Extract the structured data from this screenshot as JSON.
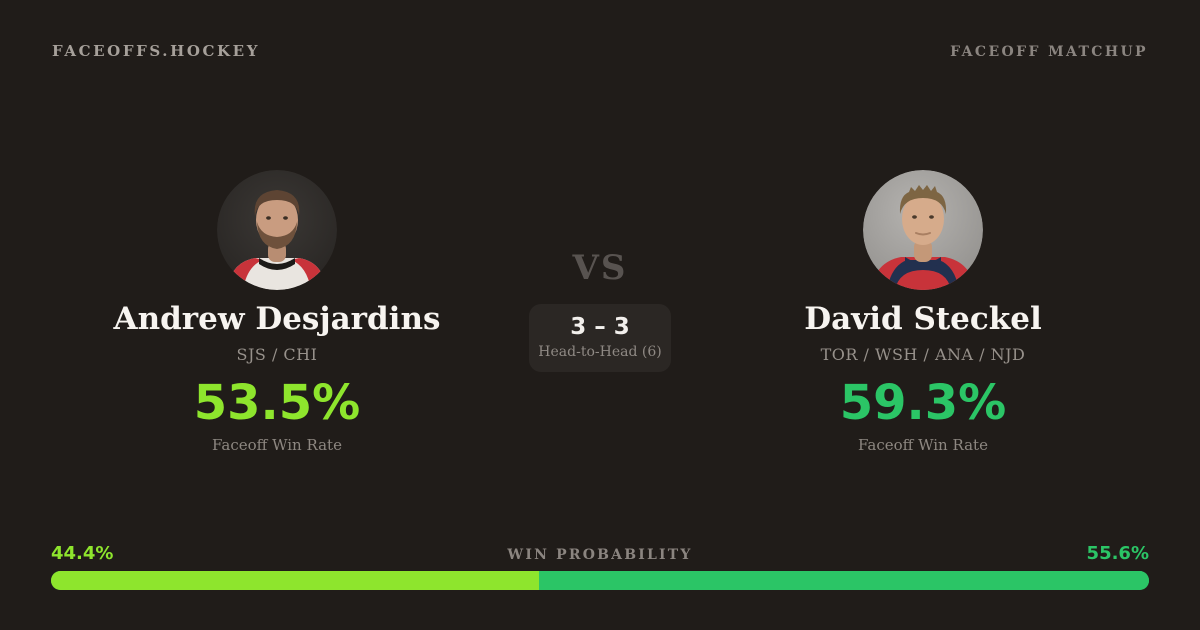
{
  "header": {
    "brand": "FACEOFFS.HOCKEY",
    "page_label": "FACEOFF MATCHUP"
  },
  "players": {
    "left": {
      "name": "Andrew Desjardins",
      "teams": "SJS / CHI",
      "faceoff_win_rate": "53.5%",
      "rate_label": "Faceoff Win Rate",
      "win_probability_label": "44.4%",
      "win_probability_pct": 44.4,
      "accent_color": "#8ee52d"
    },
    "right": {
      "name": "David Steckel",
      "teams": "TOR / WSH / ANA / NJD",
      "faceoff_win_rate": "59.3%",
      "rate_label": "Faceoff Win Rate",
      "win_probability_label": "55.6%",
      "win_probability_pct": 55.6,
      "accent_color": "#2bc566"
    }
  },
  "center": {
    "vs_label": "VS",
    "head_to_head_score": "3 – 3",
    "head_to_head_label": "Head-to-Head (6)"
  },
  "win_probability": {
    "label": "WIN PROBABILITY"
  },
  "colors": {
    "background": "#201c19",
    "box_background": "#2b2724",
    "green_left": "#8ee52d",
    "green_right": "#2bc566",
    "text_primary": "#f7f4f0",
    "text_muted": "#8d8781"
  }
}
